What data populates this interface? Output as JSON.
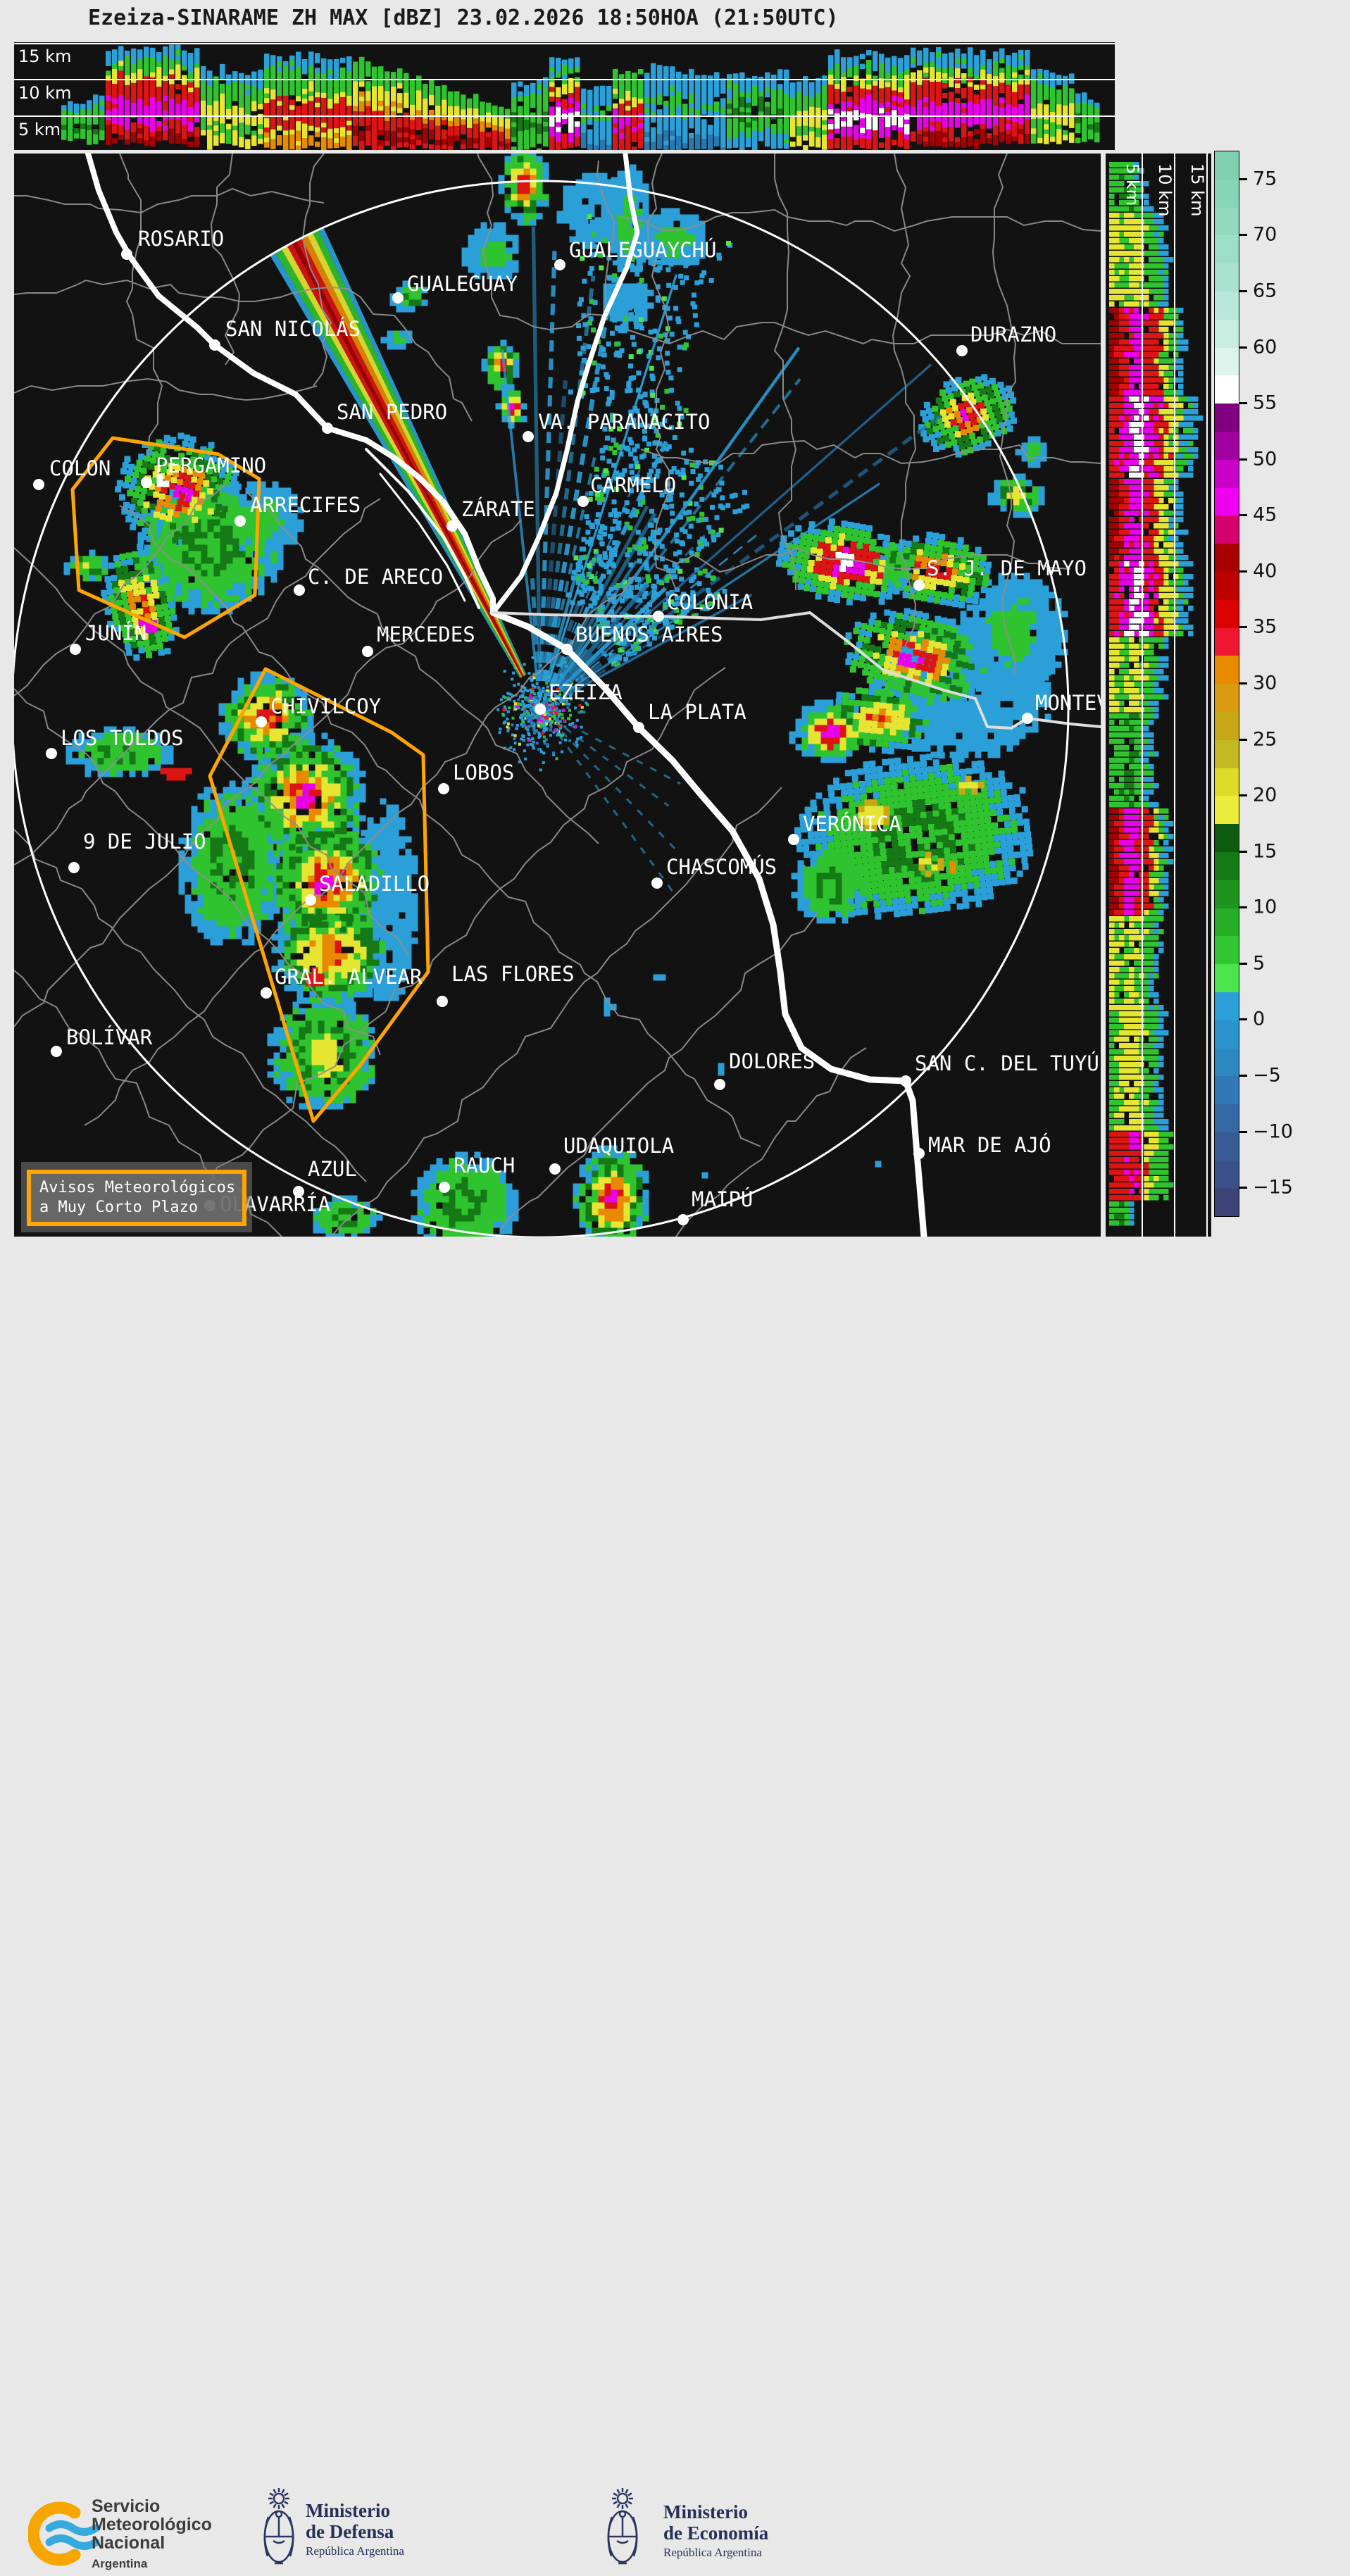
{
  "title": "Ezeiza-SINARAME ZH MAX [dBZ] 23.02.2026 18:50HOA (21:50UTC)",
  "top_panel": {
    "height_labels": [
      "15 km",
      "10 km",
      "5 km"
    ]
  },
  "right_panel": {
    "height_labels": [
      "5 km",
      "10 km",
      "15 km"
    ]
  },
  "colorbar": {
    "ticks": [
      75,
      70,
      65,
      60,
      55,
      50,
      45,
      40,
      35,
      30,
      25,
      20,
      15,
      10,
      5,
      0,
      -5,
      -10,
      -15
    ],
    "colors": [
      "#7FCFB0",
      "#88D4B8",
      "#92D9C0",
      "#9DDEC8",
      "#A9E3D0",
      "#B7E8D9",
      "#C8EEE2",
      "#DCF4EC",
      "#FFFFFF",
      "#800080",
      "#A000A0",
      "#C800C8",
      "#F000F0",
      "#D40070",
      "#A80000",
      "#BE0000",
      "#D80000",
      "#F01830",
      "#E88A00",
      "#D89A10",
      "#C8A816",
      "#C2BA20",
      "#DCDC28",
      "#ECEC3C",
      "#0E5A0E",
      "#157A15",
      "#1E941E",
      "#27AE27",
      "#33C633",
      "#4CE44C",
      "#2BA0D8",
      "#2B94CC",
      "#2E88C0",
      "#3178B4",
      "#3468A4",
      "#385C94",
      "#3A5088",
      "#3C4478"
    ]
  },
  "map": {
    "warning_color": "#FFA500",
    "cities": [
      {
        "name": "ROSARIO",
        "dot": [
          180,
          361
        ],
        "label": [
          196,
          326
        ]
      },
      {
        "name": "SAN NICOLÁS",
        "dot": [
          305,
          490
        ],
        "label": [
          320,
          454
        ]
      },
      {
        "name": "SAN PEDRO",
        "dot": [
          465,
          608
        ],
        "label": [
          478,
          572
        ]
      },
      {
        "name": "GUALEGUAY",
        "dot": [
          565,
          423
        ],
        "label": [
          578,
          390
        ]
      },
      {
        "name": "GUALEGUAYCHÚ",
        "dot": [
          795,
          376
        ],
        "label": [
          808,
          342
        ]
      },
      {
        "name": "VA. PARANACITO",
        "dot": [
          750,
          620
        ],
        "label": [
          764,
          586
        ]
      },
      {
        "name": "DURAZNO",
        "dot": [
          1366,
          498
        ],
        "label": [
          1378,
          462
        ]
      },
      {
        "name": "COLON",
        "dot": [
          55,
          688
        ],
        "label": [
          70,
          652
        ]
      },
      {
        "name": "PERGAMINO",
        "dot": [
          208,
          685
        ],
        "label": [
          221,
          648
        ]
      },
      {
        "name": "ARRECIFES",
        "dot": [
          341,
          740
        ],
        "label": [
          355,
          704
        ]
      },
      {
        "name": "ZÁRATE",
        "dot": [
          642,
          747
        ],
        "label": [
          655,
          710
        ]
      },
      {
        "name": "CARMELO",
        "dot": [
          828,
          712
        ],
        "label": [
          838,
          676
        ]
      },
      {
        "name": "C. DE ARECO",
        "dot": [
          425,
          838
        ],
        "label": [
          437,
          806
        ]
      },
      {
        "name": "COLONIA",
        "dot": [
          935,
          875
        ],
        "label": [
          947,
          842
        ]
      },
      {
        "name": "S. J. DE MAYO",
        "dot": [
          1305,
          831
        ],
        "label": [
          1316,
          794
        ]
      },
      {
        "name": "JUNÍN",
        "dot": [
          107,
          922
        ],
        "label": [
          121,
          886
        ]
      },
      {
        "name": "MERCEDES",
        "dot": [
          522,
          925
        ],
        "label": [
          535,
          888
        ]
      },
      {
        "name": "BUENOS AIRES",
        "dot": [
          805,
          922
        ],
        "label": [
          817,
          888
        ]
      },
      {
        "name": "EZEIZA",
        "dot": [
          767,
          1007
        ],
        "label": [
          779,
          970
        ]
      },
      {
        "name": "LA PLATA",
        "dot": [
          907,
          1033
        ],
        "label": [
          920,
          998
        ]
      },
      {
        "name": "MONTEVIDEO",
        "dot": [
          1459,
          1020
        ],
        "label": [
          1470,
          985
        ]
      },
      {
        "name": "CHIVILCOY",
        "dot": [
          371,
          1025
        ],
        "label": [
          384,
          990
        ]
      },
      {
        "name": "LOS TOLDOS",
        "dot": [
          73,
          1070
        ],
        "label": [
          86,
          1035
        ]
      },
      {
        "name": "LOBOS",
        "dot": [
          630,
          1120
        ],
        "label": [
          643,
          1084
        ]
      },
      {
        "name": "9 DE JULIO",
        "dot": [
          105,
          1232
        ],
        "label": [
          118,
          1182
        ]
      },
      {
        "name": "SALADILLO",
        "dot": [
          441,
          1278
        ],
        "label": [
          453,
          1242
        ]
      },
      {
        "name": "VERÓNICA",
        "dot": [
          1127,
          1192
        ],
        "label": [
          1140,
          1157
        ]
      },
      {
        "name": "CHASCOMÚS",
        "dot": [
          933,
          1254
        ],
        "label": [
          946,
          1218
        ]
      },
      {
        "name": "GRAL. ALVEAR",
        "dot": [
          378,
          1410
        ],
        "label": [
          390,
          1374
        ]
      },
      {
        "name": "LAS FLORES",
        "dot": [
          628,
          1422
        ],
        "label": [
          641,
          1370
        ]
      },
      {
        "name": "BOLÍVAR",
        "dot": [
          80,
          1493
        ],
        "label": [
          94,
          1460
        ]
      },
      {
        "name": "DOLORES",
        "dot": [
          1022,
          1540
        ],
        "label": [
          1035,
          1494
        ]
      },
      {
        "name": "UDAQUIOLA",
        "dot": [
          788,
          1660
        ],
        "label": [
          800,
          1614
        ]
      },
      {
        "name": "SAN C. DEL TUYÚ",
        "dot": [
          1286,
          1535
        ],
        "label": [
          1299,
          1497
        ]
      },
      {
        "name": "MAR DE AJÓ",
        "dot": [
          1305,
          1638
        ],
        "label": [
          1318,
          1613
        ]
      },
      {
        "name": "MAIPÚ",
        "dot": [
          970,
          1732
        ],
        "label": [
          982,
          1690
        ]
      },
      {
        "name": "AZUL",
        "dot": [
          424,
          1692
        ],
        "label": [
          437,
          1647
        ]
      },
      {
        "name": "RAUCH",
        "dot": [
          631,
          1686
        ],
        "label": [
          644,
          1642
        ]
      },
      {
        "name": "OLAVARRÍA",
        "dot": [
          298,
          1712
        ],
        "label": [
          312,
          1697
        ]
      }
    ]
  },
  "legend": {
    "line1": "Avisos Meteorológicos",
    "line2": "a Muy Corto Plazo"
  },
  "footer": {
    "smn": {
      "line1": "Servicio",
      "line2": "Meteorológico",
      "line3": "Nacional",
      "sub": "Argentina"
    },
    "defensa": {
      "line1": "Ministerio",
      "line2": "de Defensa",
      "sub": "República Argentina"
    },
    "economia": {
      "line1": "Ministerio",
      "line2": "de Economía",
      "sub": "República Argentina"
    }
  }
}
